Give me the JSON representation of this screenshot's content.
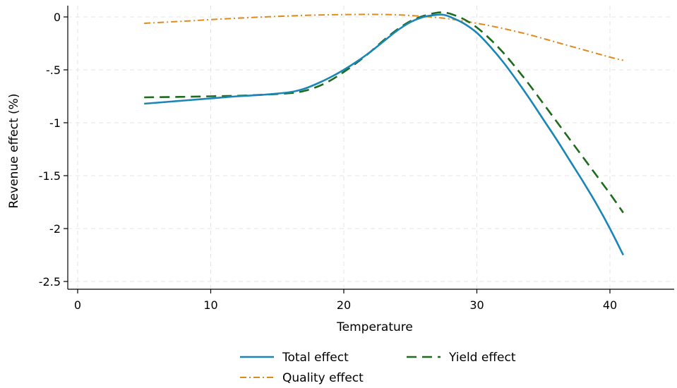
{
  "chart_data": {
    "type": "line",
    "xlabel": "Temperature",
    "ylabel": "Revenue effect (%)",
    "xlim": [
      0,
      45
    ],
    "ylim": [
      -2.6,
      0.1
    ],
    "grid": true,
    "legend_position": "bottom",
    "x_ticks": [
      {
        "value": 0,
        "label": "0"
      },
      {
        "value": 10,
        "label": "10"
      },
      {
        "value": 20,
        "label": "20"
      },
      {
        "value": 30,
        "label": "30"
      },
      {
        "value": 40,
        "label": "40"
      }
    ],
    "y_ticks": [
      {
        "value": 0,
        "label": "0"
      },
      {
        "value": -0.5,
        "label": "-.5"
      },
      {
        "value": -1,
        "label": "-1"
      },
      {
        "value": -1.5,
        "label": "-1.5"
      },
      {
        "value": -2,
        "label": "-2"
      },
      {
        "value": -2.5,
        "label": "-2.5"
      }
    ],
    "series": [
      {
        "name": "Total effect",
        "color": "#1a86b8",
        "style": "solid",
        "x": [
          5,
          8,
          10,
          12,
          14,
          16,
          17,
          18,
          19,
          20,
          21,
          22,
          23,
          24,
          25,
          26,
          27,
          27.5,
          28,
          29,
          30,
          31,
          32,
          33,
          34,
          35,
          36,
          37,
          38,
          39,
          40,
          41
        ],
        "y": [
          -0.82,
          -0.79,
          -0.77,
          -0.75,
          -0.735,
          -0.71,
          -0.68,
          -0.63,
          -0.57,
          -0.5,
          -0.42,
          -0.33,
          -0.23,
          -0.13,
          -0.05,
          0.0,
          0.02,
          0.02,
          0.0,
          -0.06,
          -0.15,
          -0.28,
          -0.43,
          -0.6,
          -0.78,
          -0.97,
          -1.16,
          -1.36,
          -1.56,
          -1.77,
          -2.0,
          -2.25
        ]
      },
      {
        "name": "Yield effect",
        "color": "#1e6b1e",
        "style": "dashed",
        "x": [
          5,
          8,
          10,
          12,
          14,
          16,
          17,
          18,
          19,
          20,
          21,
          22,
          23,
          24,
          25,
          26,
          27,
          27.5,
          28,
          29,
          30,
          31,
          32,
          33,
          34,
          35,
          36,
          37,
          38,
          39,
          40,
          41
        ],
        "y": [
          -0.76,
          -0.755,
          -0.75,
          -0.745,
          -0.735,
          -0.72,
          -0.7,
          -0.66,
          -0.6,
          -0.52,
          -0.43,
          -0.33,
          -0.22,
          -0.12,
          -0.04,
          0.01,
          0.04,
          0.04,
          0.03,
          -0.02,
          -0.1,
          -0.21,
          -0.34,
          -0.49,
          -0.65,
          -0.82,
          -0.99,
          -1.16,
          -1.33,
          -1.5,
          -1.67,
          -1.85
        ]
      },
      {
        "name": "Quality effect",
        "color": "#e08a1c",
        "style": "dashdot",
        "x": [
          5,
          8,
          10,
          12,
          14,
          16,
          18,
          20,
          22,
          24,
          26,
          28,
          30,
          32,
          34,
          36,
          38,
          40,
          41
        ],
        "y": [
          -0.06,
          -0.04,
          -0.025,
          -0.012,
          0.0,
          0.01,
          0.018,
          0.022,
          0.024,
          0.02,
          0.005,
          -0.02,
          -0.06,
          -0.11,
          -0.17,
          -0.24,
          -0.31,
          -0.38,
          -0.41
        ]
      }
    ]
  }
}
